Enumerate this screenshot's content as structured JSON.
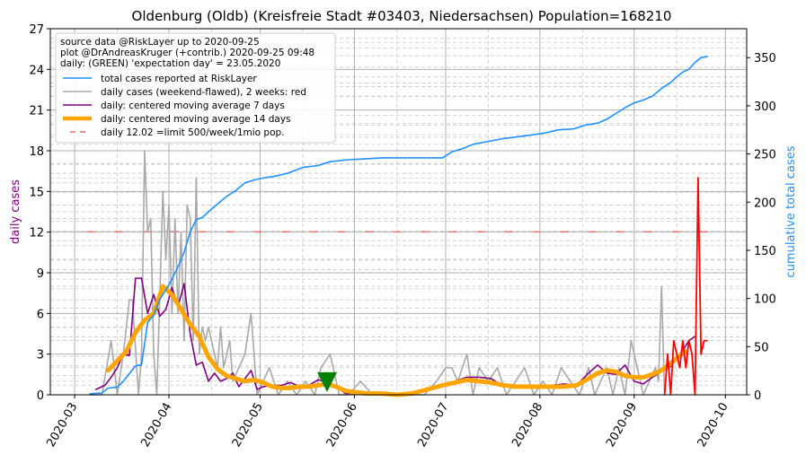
{
  "chart_data": {
    "type": "line",
    "title": "Oldenburg (Oldb) (Kreisfreie Stadt #03403, Niedersachsen) Population=168210",
    "ylabel_left": "daily cases",
    "ylabel_right": "cumulative total cases",
    "ylim_left": [
      0,
      27
    ],
    "ylim_right": [
      0,
      380
    ],
    "yticks_left": [
      "0",
      "3",
      "6",
      "9",
      "12",
      "15",
      "18",
      "21",
      "24",
      "27"
    ],
    "yticks_right": [
      "0",
      "50",
      "100",
      "150",
      "200",
      "250",
      "300",
      "350"
    ],
    "xlim": [
      "2020-02-22",
      "2020-10-08"
    ],
    "xticks": [
      "2020-03",
      "2020-04",
      "2020-05",
      "2020-06",
      "2020-07",
      "2020-08",
      "2020-09",
      "2020-10"
    ],
    "xtick_dates": [
      "2020-03-01",
      "2020-04-01",
      "2020-05-01",
      "2020-06-01",
      "2020-07-01",
      "2020-08-01",
      "2020-09-01",
      "2020-10-01"
    ],
    "grid": true,
    "legend_position": "upper-left",
    "info_lines": [
      "source data @RiskLayer up to 2020-09-25",
      "plot @DrAndreasKruger (+contrib.) 2020-09-25 09:48",
      "daily: (GREEN) 'expectation day' = 23.05.2020"
    ],
    "legend": [
      {
        "label": "total cases reported at RiskLayer",
        "color": "#1e90ff",
        "style": "solid",
        "width": 1.5
      },
      {
        "label": "daily cases (weekend-flawed), 2 weeks: red",
        "color": "#a9a9a9",
        "style": "solid",
        "width": 1.5
      },
      {
        "label": "daily: centered moving average 7 days",
        "color": "#800080",
        "style": "solid",
        "width": 1.5
      },
      {
        "label": "daily: centered moving average 14 days",
        "color": "#ffa500",
        "style": "solid",
        "width": 4.5
      },
      {
        "label": "daily 12.02 =limit 500/week/1mio pop.",
        "color": "#ff6666",
        "style": "dashed",
        "width": 1.5
      }
    ],
    "limit_line": {
      "value": 12.02,
      "color": "#ff6666"
    },
    "expectation_day": {
      "date": "2020-05-23",
      "value": 1.0,
      "color": "#008000"
    },
    "series": [
      {
        "name": "total cases reported at RiskLayer",
        "axis": "right",
        "color": "#1e90ff",
        "x": [
          "2020-03-06",
          "2020-03-10",
          "2020-03-12",
          "2020-03-15",
          "2020-03-17",
          "2020-03-19",
          "2020-03-21",
          "2020-03-23",
          "2020-03-25",
          "2020-03-27",
          "2020-03-29",
          "2020-03-31",
          "2020-04-02",
          "2020-04-04",
          "2020-04-06",
          "2020-04-08",
          "2020-04-10",
          "2020-04-12",
          "2020-04-14",
          "2020-04-17",
          "2020-04-20",
          "2020-04-23",
          "2020-04-26",
          "2020-04-29",
          "2020-05-02",
          "2020-05-06",
          "2020-05-10",
          "2020-05-15",
          "2020-05-20",
          "2020-05-24",
          "2020-05-30",
          "2020-06-05",
          "2020-06-10",
          "2020-06-15",
          "2020-06-20",
          "2020-06-26",
          "2020-06-30",
          "2020-07-03",
          "2020-07-07",
          "2020-07-10",
          "2020-07-15",
          "2020-07-20",
          "2020-07-25",
          "2020-07-30",
          "2020-08-03",
          "2020-08-07",
          "2020-08-12",
          "2020-08-16",
          "2020-08-20",
          "2020-08-23",
          "2020-08-26",
          "2020-08-29",
          "2020-09-01",
          "2020-09-04",
          "2020-09-07",
          "2020-09-10",
          "2020-09-13",
          "2020-09-15",
          "2020-09-17",
          "2020-09-19",
          "2020-09-21",
          "2020-09-23",
          "2020-09-25"
        ],
        "y": [
          1,
          2,
          7,
          8,
          14,
          22,
          30,
          31,
          75,
          83,
          99,
          109,
          120,
          133,
          148,
          169,
          182,
          184,
          190,
          198,
          206,
          212,
          220,
          223,
          225,
          227,
          230,
          236,
          238,
          242,
          244,
          245,
          246,
          246,
          246,
          246,
          246,
          252,
          256,
          260,
          263,
          266,
          268,
          270,
          272,
          275,
          276,
          280,
          282,
          286,
          292,
          298,
          303,
          306,
          310,
          318,
          324,
          330,
          335,
          338,
          345,
          350,
          351
        ]
      },
      {
        "name": "daily cases (weekend-flawed), 2 weeks: red",
        "axis": "left",
        "color": "#a9a9a9",
        "x": [
          "2020-03-06",
          "2020-03-10",
          "2020-03-13",
          "2020-03-15",
          "2020-03-17",
          "2020-03-19",
          "2020-03-20",
          "2020-03-22",
          "2020-03-23",
          "2020-03-24",
          "2020-03-25",
          "2020-03-26",
          "2020-03-27",
          "2020-03-28",
          "2020-03-29",
          "2020-03-30",
          "2020-03-31",
          "2020-04-01",
          "2020-04-02",
          "2020-04-03",
          "2020-04-04",
          "2020-04-05",
          "2020-04-06",
          "2020-04-07",
          "2020-04-08",
          "2020-04-09",
          "2020-04-10",
          "2020-04-11",
          "2020-04-12",
          "2020-04-13",
          "2020-04-14",
          "2020-04-15",
          "2020-04-17",
          "2020-04-18",
          "2020-04-19",
          "2020-04-21",
          "2020-04-22",
          "2020-04-24",
          "2020-04-26",
          "2020-04-28",
          "2020-04-30",
          "2020-05-02",
          "2020-05-04",
          "2020-05-07",
          "2020-05-10",
          "2020-05-13",
          "2020-05-16",
          "2020-05-19",
          "2020-05-21",
          "2020-05-24",
          "2020-05-27",
          "2020-05-30",
          "2020-06-03",
          "2020-06-07",
          "2020-06-12",
          "2020-06-18",
          "2020-06-24",
          "2020-06-28",
          "2020-07-01",
          "2020-07-03",
          "2020-07-05",
          "2020-07-08",
          "2020-07-10",
          "2020-07-12",
          "2020-07-15",
          "2020-07-18",
          "2020-07-21",
          "2020-07-24",
          "2020-07-27",
          "2020-07-30",
          "2020-08-02",
          "2020-08-05",
          "2020-08-08",
          "2020-08-11",
          "2020-08-14",
          "2020-08-17",
          "2020-08-19",
          "2020-08-21",
          "2020-08-23",
          "2020-08-25",
          "2020-08-27",
          "2020-08-29",
          "2020-08-31",
          "2020-09-02",
          "2020-09-04",
          "2020-09-06",
          "2020-09-08",
          "2020-09-09",
          "2020-09-10",
          "2020-09-11"
        ],
        "y": [
          0,
          0,
          4,
          0,
          3,
          7,
          7,
          0,
          3,
          18,
          12,
          13,
          3,
          0,
          7,
          15,
          10,
          14,
          6,
          13,
          6,
          12,
          4,
          14,
          13,
          4,
          16,
          3,
          5,
          4,
          5,
          4,
          2,
          5,
          2,
          4,
          1,
          2,
          3,
          6,
          0,
          1,
          2,
          0,
          1,
          0,
          1,
          0,
          2,
          3,
          0,
          0,
          1,
          0,
          0,
          0,
          0,
          1,
          2,
          2,
          1,
          3,
          0,
          2,
          1,
          2,
          0,
          1,
          2,
          0,
          1,
          0,
          2,
          1,
          0,
          2,
          0,
          1,
          2,
          0,
          2,
          0,
          4,
          2,
          0,
          1,
          2,
          1,
          8,
          0
        ]
      },
      {
        "name": "daily: centered moving average 7 days",
        "axis": "left",
        "color": "#800080",
        "x": [
          "2020-03-08",
          "2020-03-11",
          "2020-03-13",
          "2020-03-15",
          "2020-03-17",
          "2020-03-19",
          "2020-03-21",
          "2020-03-23",
          "2020-03-25",
          "2020-03-27",
          "2020-03-29",
          "2020-03-31",
          "2020-04-02",
          "2020-04-04",
          "2020-04-06",
          "2020-04-08",
          "2020-04-10",
          "2020-04-12",
          "2020-04-14",
          "2020-04-16",
          "2020-04-18",
          "2020-04-20",
          "2020-04-22",
          "2020-04-24",
          "2020-04-26",
          "2020-04-28",
          "2020-04-30",
          "2020-05-02",
          "2020-05-05",
          "2020-05-08",
          "2020-05-11",
          "2020-05-14",
          "2020-05-17",
          "2020-05-20",
          "2020-05-23",
          "2020-05-26",
          "2020-05-29",
          "2020-06-01",
          "2020-06-05",
          "2020-06-10",
          "2020-06-15",
          "2020-06-20",
          "2020-06-25",
          "2020-06-30",
          "2020-07-04",
          "2020-07-08",
          "2020-07-12",
          "2020-07-16",
          "2020-07-20",
          "2020-07-24",
          "2020-07-28",
          "2020-08-01",
          "2020-08-05",
          "2020-08-09",
          "2020-08-13",
          "2020-08-17",
          "2020-08-20",
          "2020-08-23",
          "2020-08-26",
          "2020-08-29",
          "2020-09-01",
          "2020-09-04",
          "2020-09-07",
          "2020-09-10",
          "2020-09-13",
          "2020-09-16",
          "2020-09-19",
          "2020-09-21"
        ],
        "y": [
          0.4,
          0.7,
          1.3,
          2.0,
          3.0,
          2.9,
          8.6,
          8.6,
          6.0,
          7.4,
          5.8,
          6.3,
          7.9,
          6.5,
          8.2,
          4.5,
          2.2,
          2.4,
          1.0,
          1.6,
          1.0,
          1.2,
          1.6,
          0.6,
          1.2,
          1.8,
          0.4,
          0.6,
          0.7,
          0.7,
          0.9,
          0.6,
          0.7,
          1.1,
          1.0,
          0.6,
          0.1,
          0.1,
          0.2,
          0.1,
          0.0,
          0.1,
          0.3,
          0.6,
          1.0,
          1.3,
          1.3,
          1.2,
          0.6,
          0.7,
          0.6,
          0.7,
          0.7,
          0.8,
          0.7,
          1.6,
          2.2,
          1.6,
          1.5,
          2.2,
          1.0,
          0.8,
          1.3,
          1.7,
          2.1,
          2.9,
          4.0,
          4.3
        ]
      },
      {
        "name": "daily: centered moving average 14 days",
        "axis": "left",
        "color": "#ffa500",
        "x": [
          "2020-03-12",
          "2020-03-15",
          "2020-03-18",
          "2020-03-21",
          "2020-03-24",
          "2020-03-27",
          "2020-03-30",
          "2020-04-02",
          "2020-04-05",
          "2020-04-08",
          "2020-04-11",
          "2020-04-14",
          "2020-04-17",
          "2020-04-20",
          "2020-04-23",
          "2020-04-26",
          "2020-04-29",
          "2020-05-02",
          "2020-05-05",
          "2020-05-08",
          "2020-05-11",
          "2020-05-14",
          "2020-05-17",
          "2020-05-20",
          "2020-05-23",
          "2020-05-26",
          "2020-05-29",
          "2020-06-01",
          "2020-06-05",
          "2020-06-10",
          "2020-06-15",
          "2020-06-20",
          "2020-06-25",
          "2020-06-30",
          "2020-07-04",
          "2020-07-08",
          "2020-07-12",
          "2020-07-16",
          "2020-07-20",
          "2020-07-24",
          "2020-07-28",
          "2020-08-01",
          "2020-08-05",
          "2020-08-09",
          "2020-08-13",
          "2020-08-17",
          "2020-08-20",
          "2020-08-23",
          "2020-08-26",
          "2020-08-29",
          "2020-09-01",
          "2020-09-04",
          "2020-09-07",
          "2020-09-10",
          "2020-09-13",
          "2020-09-16",
          "2020-09-18"
        ],
        "y": [
          1.8,
          2.5,
          3.2,
          4.6,
          5.5,
          6.0,
          8.0,
          7.4,
          6.3,
          5.2,
          4.3,
          2.8,
          1.9,
          1.4,
          1.2,
          1.0,
          1.1,
          0.9,
          0.6,
          0.5,
          0.5,
          0.6,
          0.6,
          0.7,
          0.8,
          0.6,
          0.3,
          0.2,
          0.1,
          0.1,
          0.0,
          0.1,
          0.4,
          0.7,
          0.9,
          1.1,
          1.0,
          0.9,
          0.7,
          0.6,
          0.6,
          0.6,
          0.6,
          0.6,
          0.7,
          1.2,
          1.6,
          1.8,
          1.7,
          1.4,
          1.3,
          1.3,
          1.5,
          1.8,
          2.3,
          2.9,
          3.2
        ]
      },
      {
        "name": "daily cases, last 2 weeks",
        "axis": "left",
        "color": "#ff0000",
        "x": [
          "2020-09-11",
          "2020-09-12",
          "2020-09-13",
          "2020-09-14",
          "2020-09-15",
          "2020-09-16",
          "2020-09-17",
          "2020-09-18",
          "2020-09-19",
          "2020-09-20",
          "2020-09-21",
          "2020-09-22",
          "2020-09-23",
          "2020-09-24",
          "2020-09-25"
        ],
        "y": [
          0,
          3,
          0,
          4,
          3,
          2,
          4,
          2,
          4,
          3,
          0,
          16,
          3,
          4,
          4
        ]
      }
    ]
  }
}
